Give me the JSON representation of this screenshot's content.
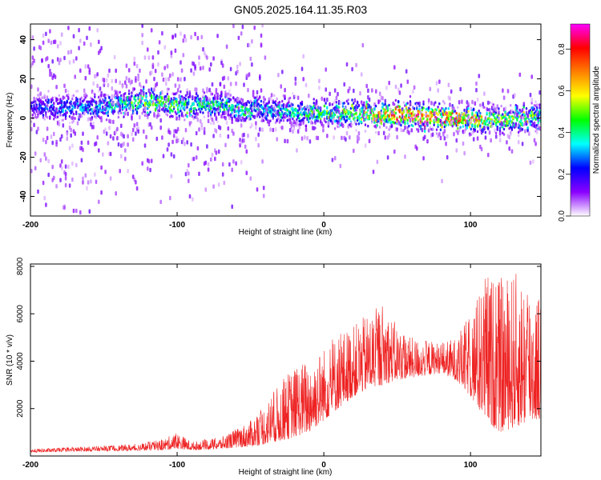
{
  "figure": {
    "title": "GN05.2025.164.11.35.R03"
  },
  "chart_data": [
    {
      "type": "heatmap",
      "xlabel": "Height of straight line (km)",
      "ylabel": "Frequency (Hz)",
      "xlim": [
        -200,
        148
      ],
      "ylim": [
        -50,
        48
      ],
      "xticks": [
        -200,
        -100,
        0,
        100
      ],
      "yticks": [
        -40,
        -20,
        0,
        20,
        40
      ],
      "colorbar": {
        "label": "Normalized spectral amplitude",
        "range": [
          0,
          0.92
        ],
        "ticks": [
          0.0,
          0.2,
          0.4,
          0.6,
          0.8
        ],
        "colors": [
          "#ffffff",
          "#8a00ff",
          "#0000ff",
          "#00ffff",
          "#00ff00",
          "#ffff00",
          "#ff8000",
          "#ff0000",
          "#ff00ff"
        ]
      },
      "ridge": {
        "x": [
          -200,
          -180,
          -160,
          -140,
          -120,
          -100,
          -80,
          -60,
          -40,
          -20,
          0,
          20,
          40,
          60,
          80,
          100,
          120,
          140,
          148
        ],
        "freq": [
          5,
          5,
          5,
          7,
          8,
          7,
          6,
          5,
          4,
          3,
          2,
          2,
          2,
          1,
          0,
          -1,
          -1,
          0,
          0
        ],
        "peak_amplitude": [
          0.25,
          0.3,
          0.35,
          0.45,
          0.55,
          0.5,
          0.45,
          0.45,
          0.4,
          0.45,
          0.5,
          0.6,
          0.7,
          0.85,
          0.85,
          0.7,
          0.55,
          0.55,
          0.5
        ]
      },
      "grid": false
    },
    {
      "type": "line",
      "xlabel": "Height of straight line (km)",
      "ylabel": "SNR (10 * v/v)",
      "xlim": [
        -200,
        148
      ],
      "ylim": [
        0,
        8100
      ],
      "xticks": [
        -200,
        -100,
        0,
        100
      ],
      "yticks": [
        2000,
        4000,
        6000,
        8000
      ],
      "series": [
        {
          "color": "#ee2222",
          "envelope_x": [
            -200,
            -160,
            -130,
            -110,
            -100,
            -90,
            -70,
            -50,
            -40,
            -25,
            -10,
            0,
            10,
            20,
            30,
            40,
            50,
            60,
            80,
            90,
            100,
            110,
            120,
            130,
            140,
            148
          ],
          "envelope_min": [
            150,
            200,
            220,
            250,
            300,
            250,
            300,
            400,
            500,
            700,
            1000,
            1500,
            2000,
            2500,
            2800,
            3000,
            3200,
            3300,
            3500,
            3200,
            2500,
            1500,
            1000,
            1200,
            1400,
            1600
          ],
          "envelope_max": [
            300,
            400,
            500,
            700,
            1000,
            600,
            800,
            1500,
            2200,
            3500,
            4200,
            4600,
            5200,
            5500,
            6000,
            6500,
            5500,
            5000,
            4800,
            5000,
            6000,
            7800,
            7500,
            7800,
            7600,
            6800
          ]
        }
      ],
      "grid": false
    }
  ]
}
